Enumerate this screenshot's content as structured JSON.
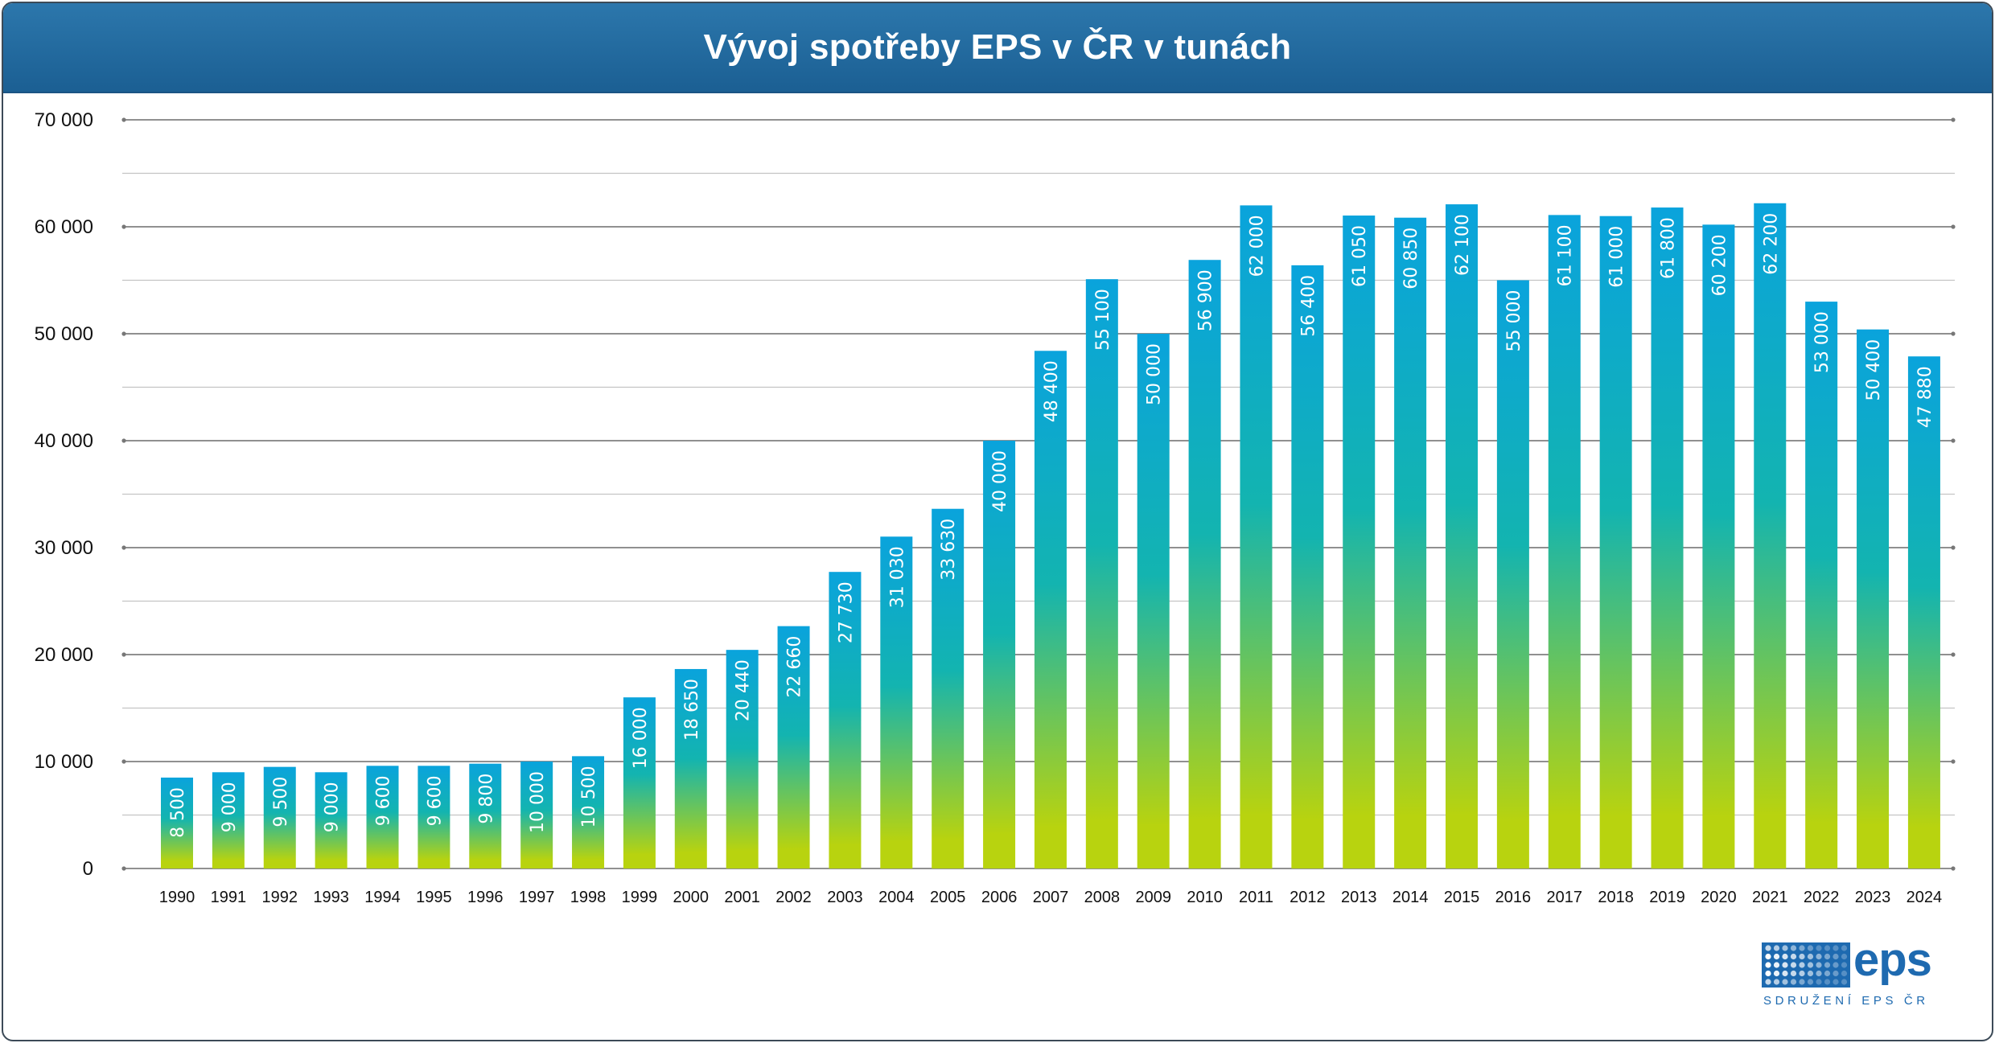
{
  "header": {
    "title": "Vývoj spotřeby EPS v ČR v tunách"
  },
  "colors": {
    "header_bg": "#1f6599",
    "bar_top": "#0aa3dc",
    "bar_mid": "#13b4b0",
    "bar_bottom": "#b8d30f",
    "logo": "#1e6ab0"
  },
  "logo": {
    "word": "eps",
    "subtitle": "SDRUŽENÍ EPS ČR",
    "icon": "dot-grid-icon"
  },
  "chart_data": {
    "type": "bar",
    "title": "Vývoj spotřeby EPS v ČR v tunách",
    "xlabel": "",
    "ylabel": "",
    "ylim": [
      0,
      70000
    ],
    "grid": true,
    "y_ticks": [
      "0",
      "10 000",
      "20 000",
      "30 000",
      "40 000",
      "50 000",
      "60 000",
      "70  000"
    ],
    "y_tick_values": [
      0,
      10000,
      20000,
      30000,
      40000,
      50000,
      60000,
      70000
    ],
    "categories": [
      "1990",
      "1991",
      "1992",
      "1993",
      "1994",
      "1995",
      "1996",
      "1997",
      "1998",
      "1999",
      "2000",
      "2001",
      "2002",
      "2003",
      "2004",
      "2005",
      "2006",
      "2007",
      "2008",
      "2009",
      "2010",
      "2011",
      "2012",
      "2013",
      "2014",
      "2015",
      "2016",
      "2017",
      "2018",
      "2019",
      "2020",
      "2021",
      "2022",
      "2023",
      "2024"
    ],
    "values": [
      8500,
      9000,
      9500,
      9000,
      9600,
      9600,
      9800,
      10000,
      10500,
      16000,
      18650,
      20440,
      22660,
      27730,
      31030,
      33630,
      40000,
      48400,
      55100,
      50000,
      56900,
      62000,
      56400,
      61050,
      60850,
      62100,
      55000,
      61100,
      61000,
      61800,
      60200,
      62200,
      53000,
      50400,
      47880
    ],
    "data_labels": [
      "8 500",
      "9 000",
      "9 500",
      "9 000",
      "9 600",
      "9 600",
      "9 800",
      "10 000",
      "10 500",
      "16 000",
      "18 650",
      "20 440",
      "22 660",
      "27 730",
      "31 030",
      "33 630",
      "40 000",
      "48 400",
      "55 100",
      "50 000",
      "56 900",
      "62 000",
      "56 400",
      "61 050",
      "60 850",
      "62 100",
      "55 000",
      "61 100",
      "61 000",
      "61 800",
      "60 200",
      "62 200",
      "53 000",
      "50 400",
      "47 880"
    ]
  }
}
